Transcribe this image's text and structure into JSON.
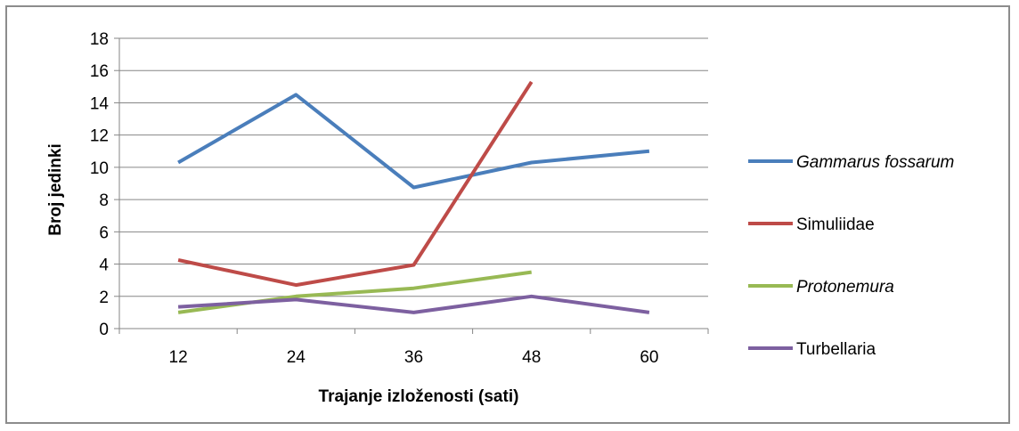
{
  "chart_data": {
    "type": "line",
    "title": "",
    "xlabel": "Trajanje izloženosti  (sati)",
    "ylabel": "Broj jedinki",
    "categories": [
      "12",
      "24",
      "36",
      "48",
      "60"
    ],
    "ylim": [
      0,
      18
    ],
    "yticks": [
      "0",
      "2",
      "4",
      "6",
      "8",
      "10",
      "12",
      "14",
      "16",
      "18"
    ],
    "grid": "horizontal",
    "legend_position": "right",
    "series": [
      {
        "name": "Gammarus fossarum",
        "italic": true,
        "color": "#4a7ebb",
        "values": [
          10.3,
          14.5,
          8.75,
          10.3,
          11.0
        ]
      },
      {
        "name": "Simuliidae",
        "italic": false,
        "color": "#be4b48",
        "values": [
          4.25,
          2.7,
          3.95,
          15.3,
          null
        ]
      },
      {
        "name": "Protonemura",
        "italic": true,
        "color": "#98b954",
        "values": [
          1.0,
          2.0,
          2.5,
          3.5,
          null
        ]
      },
      {
        "name": "Turbellaria",
        "italic": false,
        "color": "#7d60a0",
        "values": [
          1.35,
          1.8,
          1.0,
          2.0,
          1.0
        ]
      }
    ]
  }
}
